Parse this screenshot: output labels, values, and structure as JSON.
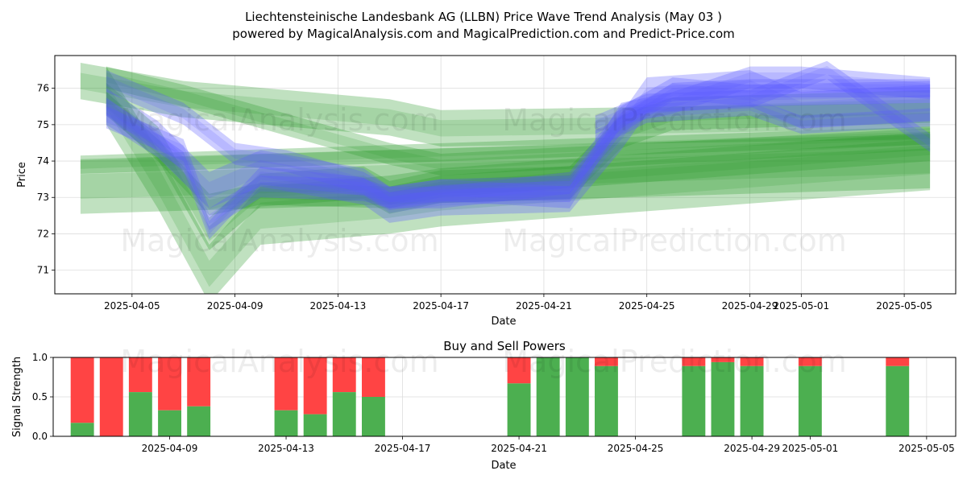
{
  "title_line1": "Liechtensteinische Landesbank AG (LLBN) Price Wave Trend Analysis (May 03 )",
  "title_line2": "powered by MagicalAnalysis.com and MagicalPrediction.com and Predict-Price.com",
  "watermarks": [
    "MagicalAnalysis.com",
    "MagicalPrediction.com"
  ],
  "colors": {
    "green": "#2e9a2e",
    "blue": "#5a5aff",
    "buy": "#4caf50",
    "sell": "#ff4444"
  },
  "chart_data": [
    {
      "type": "area",
      "xlabel": "Date",
      "ylabel": "Price",
      "ylim": [
        70.35,
        76.9
      ],
      "yticks": [
        71,
        72,
        73,
        74,
        75,
        76
      ],
      "xlim": [
        "2025-04-02",
        "2025-05-07"
      ],
      "xticks": [
        "2025-04-05",
        "2025-04-09",
        "2025-04-13",
        "2025-04-17",
        "2025-04-21",
        "2025-04-25",
        "2025-04-29",
        "2025-05-01",
        "2025-05-05"
      ],
      "grid": true,
      "series": [
        {
          "color": "green",
          "x": [
            "2025-04-03",
            "2025-05-06"
          ],
          "y": [
            73.3,
            74.0
          ],
          "band": 0.75
        },
        {
          "color": "green",
          "x": [
            "2025-04-03",
            "2025-05-06"
          ],
          "y": [
            73.9,
            74.7
          ],
          "band": 0.25
        },
        {
          "color": "green",
          "x": [
            "2025-04-03",
            "2025-04-07",
            "2025-04-15",
            "2025-04-17",
            "2025-05-06"
          ],
          "y": [
            76.2,
            75.7,
            75.2,
            74.9,
            75.1
          ],
          "band": 0.5
        },
        {
          "color": "green",
          "x": [
            "2025-04-04",
            "2025-04-07",
            "2025-04-15",
            "2025-04-17",
            "2025-05-06"
          ],
          "y": [
            76.3,
            75.8,
            74.2,
            73.9,
            74.6
          ],
          "band": 0.3
        },
        {
          "color": "green",
          "x": [
            "2025-04-04",
            "2025-04-06",
            "2025-04-08",
            "2025-04-10",
            "2025-04-15",
            "2025-04-17",
            "2025-05-06"
          ],
          "y": [
            75.6,
            74.3,
            72.8,
            73.1,
            73.0,
            73.3,
            74.3
          ],
          "band": 0.3
        },
        {
          "color": "green",
          "x": [
            "2025-04-04",
            "2025-04-06",
            "2025-04-08",
            "2025-04-10",
            "2025-04-14",
            "2025-04-15",
            "2025-04-17",
            "2025-04-22",
            "2025-04-24",
            "2025-04-26",
            "2025-05-06"
          ],
          "y": [
            75.7,
            74.5,
            72.0,
            73.2,
            73.4,
            73.0,
            73.3,
            73.4,
            74.8,
            75.3,
            75.5
          ],
          "band": 0.45
        },
        {
          "color": "green",
          "x": [
            "2025-04-04",
            "2025-04-06",
            "2025-04-08",
            "2025-04-10",
            "2025-04-15",
            "2025-04-17",
            "2025-05-06"
          ],
          "y": [
            75.8,
            73.5,
            70.9,
            72.5,
            72.8,
            73.0,
            74.0
          ],
          "band": 0.8
        },
        {
          "color": "blue",
          "x": [
            "2025-04-04",
            "2025-04-07",
            "2025-04-08",
            "2025-04-10",
            "2025-04-14",
            "2025-04-15",
            "2025-04-17",
            "2025-04-22",
            "2025-04-24",
            "2025-04-26",
            "2025-04-29",
            "2025-05-06"
          ],
          "y": [
            75.5,
            74.0,
            72.1,
            73.6,
            73.3,
            72.9,
            73.1,
            73.2,
            75.0,
            75.9,
            76.0,
            76.0
          ],
          "band": 0.25
        },
        {
          "color": "blue",
          "x": [
            "2025-04-04",
            "2025-04-07",
            "2025-04-08",
            "2025-04-10",
            "2025-04-14",
            "2025-04-15",
            "2025-04-17",
            "2025-04-22",
            "2025-04-24",
            "2025-04-26",
            "2025-04-29",
            "2025-05-06"
          ],
          "y": [
            75.2,
            74.3,
            72.4,
            73.3,
            73.2,
            73.0,
            73.0,
            73.4,
            75.2,
            76.0,
            75.8,
            75.9
          ],
          "band": 0.3
        },
        {
          "color": "blue",
          "x": [
            "2025-04-04",
            "2025-04-07",
            "2025-04-09",
            "2025-04-11",
            "2025-04-14",
            "2025-04-15",
            "2025-04-17",
            "2025-04-22",
            "2025-04-24",
            "2025-04-26",
            "2025-04-29",
            "2025-05-01",
            "2025-05-06"
          ],
          "y": [
            76.2,
            75.3,
            74.2,
            74.0,
            73.4,
            73.0,
            73.2,
            73.0,
            75.3,
            75.6,
            76.3,
            76.3,
            76.0
          ],
          "band": 0.3
        },
        {
          "color": "blue",
          "x": [
            "2025-04-04",
            "2025-04-06",
            "2025-04-08",
            "2025-04-10",
            "2025-04-14",
            "2025-04-15",
            "2025-04-17",
            "2025-04-22",
            "2025-04-24",
            "2025-04-25",
            "2025-04-29",
            "2025-05-01",
            "2025-05-06"
          ],
          "y": [
            75.5,
            74.6,
            73.2,
            73.8,
            73.3,
            72.8,
            73.0,
            73.1,
            74.8,
            75.8,
            76.0,
            75.4,
            75.6
          ],
          "band": 0.5
        },
        {
          "color": "blue",
          "x": [
            "2025-04-23",
            "2025-04-25",
            "2025-04-29",
            "2025-05-02",
            "2025-05-06"
          ],
          "y": [
            75.0,
            75.6,
            75.7,
            76.5,
            74.5
          ],
          "band": 0.25
        },
        {
          "color": "blue",
          "x": [
            "2025-04-23",
            "2025-04-25",
            "2025-04-29",
            "2025-05-01",
            "2025-05-06"
          ],
          "y": [
            74.6,
            75.3,
            75.5,
            75.0,
            75.2
          ],
          "band": 0.25
        }
      ]
    },
    {
      "type": "bar",
      "title": "Buy and Sell Powers",
      "xlabel": "Date",
      "ylabel": "Signal Strength",
      "ylim": [
        0,
        1
      ],
      "yticks": [
        "0.0",
        "0.5",
        "1.0"
      ],
      "xlim": [
        "2025-04-05",
        "2025-05-06"
      ],
      "xticks": [
        "2025-04-09",
        "2025-04-13",
        "2025-04-17",
        "2025-04-21",
        "2025-04-25",
        "2025-04-29",
        "2025-05-01",
        "2025-05-05"
      ],
      "grid": true,
      "dates": [
        "2025-04-06",
        "2025-04-07",
        "2025-04-08",
        "2025-04-09",
        "2025-04-10",
        "2025-04-13",
        "2025-04-14",
        "2025-04-15",
        "2025-04-16",
        "2025-04-21",
        "2025-04-22",
        "2025-04-23",
        "2025-04-24",
        "2025-04-27",
        "2025-04-28",
        "2025-04-29",
        "2025-05-01",
        "2025-05-04"
      ],
      "buy": [
        0.17,
        0.0,
        0.56,
        0.33,
        0.38,
        0.33,
        0.28,
        0.56,
        0.5,
        0.67,
        1.0,
        1.0,
        0.89,
        0.89,
        0.94,
        0.89,
        0.89,
        0.89
      ]
    }
  ]
}
